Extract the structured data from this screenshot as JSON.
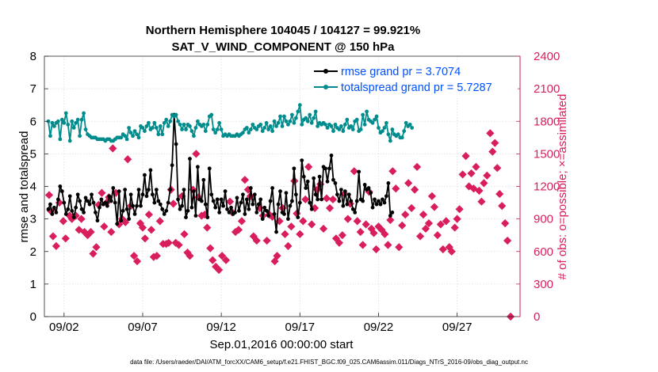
{
  "chart_data": {
    "type": "line",
    "title_line1": "Northern Hemisphere 104045 / 104127 = 99.921%",
    "title_line2": "SAT_V_WIND_COMPONENT @ 150 hPa",
    "xlabel": "Sep.01,2016 00:00:00 start",
    "ylabel_left": "rmse and totalspread",
    "ylabel_right": "# of obs: o=possible; ×=assimilated",
    "footnote": "data file: /Users/raeder/DAI/ATM_forcXX/CAM6_setup/f.e21.FHIST_BGC.f09_025.CAM6assim.011/Diags_NTrS_2016-09/obs_diag_output.nc",
    "xlim": [
      0.75,
      31.0
    ],
    "ylim_left": [
      0,
      8
    ],
    "ylim_right": [
      0,
      2400
    ],
    "x_ticks": [
      {
        "x": 2,
        "label": "09/02"
      },
      {
        "x": 7,
        "label": "09/07"
      },
      {
        "x": 12,
        "label": "09/12"
      },
      {
        "x": 17,
        "label": "09/17"
      },
      {
        "x": 22,
        "label": "09/22"
      },
      {
        "x": 27,
        "label": "09/27"
      }
    ],
    "y_ticks_left": [
      "0",
      "1",
      "2",
      "3",
      "4",
      "5",
      "6",
      "7",
      "8"
    ],
    "y_ticks_right": [
      "0",
      "300",
      "600",
      "900",
      "1200",
      "1500",
      "1800",
      "2100",
      "2400"
    ],
    "x_start": 1.0,
    "x_step": 0.125,
    "series": [
      {
        "name": "rmse grand pr = 3.7074",
        "color": "#000000",
        "values": [
          3.3,
          3.45,
          3.15,
          3.35,
          3.2,
          3.6,
          4.0,
          3.85,
          3.5,
          3.15,
          3.3,
          3.7,
          3.25,
          3.05,
          3.35,
          3.75,
          3.55,
          3.3,
          3.2,
          3.65,
          3.55,
          3.45,
          3.75,
          3.5,
          3.2,
          2.95,
          3.35,
          3.6,
          3.45,
          3.5,
          3.4,
          3.7,
          3.55,
          3.95,
          3.5,
          2.85,
          3.85,
          2.95,
          3.25,
          3.9,
          3.3,
          3.0,
          3.75,
          3.4,
          3.15,
          3.4,
          3.9,
          3.4,
          3.75,
          4.35,
          3.7,
          3.9,
          4.5,
          3.75,
          3.5,
          3.9,
          3.55,
          3.45,
          3.3,
          3.15,
          3.25,
          3.5,
          3.9,
          4.65,
          6.2,
          5.3,
          3.6,
          3.3,
          3.4,
          3.9,
          3.05,
          3.25,
          4.85,
          3.35,
          3.85,
          3.1,
          4.6,
          3.6,
          3.55,
          4.2,
          3.45,
          3.05,
          4.55,
          3.75,
          3.55,
          3.35,
          3.6,
          3.2,
          3.6,
          3.4,
          3.85,
          3.3,
          3.2,
          3.35,
          3.15,
          3.2,
          3.65,
          3.25,
          3.5,
          3.75,
          3.15,
          3.6,
          3.3,
          3.95,
          3.45,
          3.75,
          3.2,
          3.45,
          3.6,
          3.0,
          3.35,
          3.25,
          3.1,
          3.55,
          3.95,
          3.15,
          2.6,
          3.45,
          3.85,
          3.2,
          3.15,
          3.8,
          3.0,
          3.4,
          3.55,
          4.55,
          3.75,
          3.05,
          3.5,
          4.8,
          4.3,
          3.95,
          4.15,
          3.5,
          3.3,
          4.25,
          3.75,
          3.6,
          4.3,
          3.6,
          4.6,
          4.55,
          4.15,
          4.55,
          4.95,
          4.2,
          4.1,
          3.75,
          3.55,
          3.9,
          3.4,
          3.85,
          3.45,
          3.75,
          3.55,
          3.3,
          3.2,
          3.55,
          4.45,
          3.6,
          3.55,
          4.05,
          3.9,
          3.95,
          3.8,
          3.35,
          3.6,
          3.45,
          3.55,
          3.45,
          3.6,
          3.5,
          3.7,
          4.1,
          3.1,
          3.2
        ]
      },
      {
        "name": "totalspread grand pr = 5.7287",
        "color": "#008c8c",
        "values": [
          6.0,
          5.55,
          5.95,
          5.85,
          5.95,
          6.0,
          5.45,
          6.05,
          5.95,
          6.25,
          5.9,
          5.4,
          6.0,
          5.8,
          5.95,
          6.05,
          5.55,
          6.05,
          6.25,
          5.75,
          5.6,
          5.55,
          5.5,
          5.5,
          5.5,
          5.45,
          5.45,
          5.45,
          5.45,
          5.4,
          5.45,
          5.45,
          5.4,
          5.4,
          5.45,
          5.5,
          5.5,
          5.5,
          5.6,
          5.55,
          5.45,
          5.8,
          5.65,
          5.55,
          5.7,
          5.6,
          5.5,
          5.85,
          5.8,
          5.7,
          5.85,
          5.95,
          5.75,
          5.8,
          5.95,
          5.8,
          5.6,
          5.85,
          5.6,
          5.95,
          6.05,
          5.85,
          6.0,
          6.2,
          6.15,
          6.2,
          6.0,
          5.9,
          5.75,
          5.9,
          5.75,
          5.9,
          5.85,
          5.7,
          5.55,
          5.8,
          6.0,
          5.9,
          5.85,
          5.9,
          5.7,
          5.9,
          6.15,
          6.2,
          5.75,
          5.65,
          5.75,
          5.95,
          5.75,
          5.55,
          5.6,
          5.55,
          5.6,
          5.55,
          5.55,
          5.55,
          5.6,
          5.55,
          5.6,
          5.65,
          5.75,
          5.8,
          5.65,
          5.75,
          5.9,
          5.8,
          5.75,
          5.85,
          5.9,
          5.7,
          5.8,
          5.95,
          5.75,
          5.85,
          5.7,
          6.0,
          5.85,
          5.95,
          6.15,
          5.85,
          6.15,
          6.0,
          5.9,
          6.0,
          6.2,
          5.95,
          6.1,
          6.3,
          6.5,
          5.9,
          6.05,
          6.1,
          6.0,
          6.2,
          5.95,
          6.1,
          6.3,
          5.85,
          5.95,
          5.9,
          5.95,
          5.9,
          5.8,
          5.9,
          5.85,
          5.7,
          5.9,
          5.8,
          5.75,
          5.85,
          5.7,
          5.9,
          6.05,
          5.8,
          5.85,
          5.75,
          6.0,
          6.05,
          5.7,
          5.75,
          6.2,
          5.9,
          6.3,
          6.05,
          6.0,
          5.95,
          6.05,
          6.15,
          5.8,
          5.65,
          5.7,
          5.8,
          5.95,
          5.6,
          5.4,
          5.75,
          5.6,
          5.55,
          5.6,
          5.5,
          5.5,
          5.7,
          5.95,
          5.85,
          5.9,
          5.8
        ]
      },
      {
        "name": "# of obs assimilated",
        "color": "#d81e5b",
        "axis": "right",
        "points": [
          [
            1.05,
            1120
          ],
          [
            1.15,
            975
          ],
          [
            1.3,
            740
          ],
          [
            1.5,
            650
          ],
          [
            1.7,
            1050
          ],
          [
            1.95,
            880
          ],
          [
            2.1,
            720
          ],
          [
            2.35,
            930
          ],
          [
            2.5,
            900
          ],
          [
            2.75,
            930
          ],
          [
            2.95,
            800
          ],
          [
            3.1,
            900
          ],
          [
            3.3,
            780
          ],
          [
            3.5,
            750
          ],
          [
            3.7,
            780
          ],
          [
            3.85,
            580
          ],
          [
            4.05,
            640
          ],
          [
            4.2,
            1030
          ],
          [
            4.4,
            1140
          ],
          [
            4.55,
            830
          ],
          [
            4.7,
            1050
          ],
          [
            4.85,
            1100
          ],
          [
            5.0,
            780
          ],
          [
            5.1,
            1550
          ],
          [
            5.3,
            1140
          ],
          [
            5.5,
            850
          ],
          [
            5.7,
            900
          ],
          [
            5.9,
            870
          ],
          [
            6.05,
            1450
          ],
          [
            6.25,
            1020
          ],
          [
            6.45,
            560
          ],
          [
            6.65,
            510
          ],
          [
            6.85,
            860
          ],
          [
            7.0,
            820
          ],
          [
            7.15,
            720
          ],
          [
            7.4,
            940
          ],
          [
            7.55,
            800
          ],
          [
            7.7,
            550
          ],
          [
            7.9,
            560
          ],
          [
            8.1,
            880
          ],
          [
            8.3,
            670
          ],
          [
            8.5,
            670
          ],
          [
            8.65,
            680
          ],
          [
            8.8,
            1170
          ],
          [
            8.95,
            1040
          ],
          [
            9.1,
            680
          ],
          [
            9.3,
            660
          ],
          [
            9.5,
            1110
          ],
          [
            9.65,
            760
          ],
          [
            9.85,
            590
          ],
          [
            10.0,
            560
          ],
          [
            10.2,
            1170
          ],
          [
            10.4,
            1500
          ],
          [
            10.55,
            1100
          ],
          [
            10.75,
            930
          ],
          [
            10.95,
            940
          ],
          [
            11.1,
            820
          ],
          [
            11.3,
            630
          ],
          [
            11.45,
            520
          ],
          [
            11.65,
            460
          ],
          [
            11.85,
            430
          ],
          [
            12.05,
            560
          ],
          [
            12.3,
            520
          ],
          [
            12.55,
            1060
          ],
          [
            12.7,
            960
          ],
          [
            12.9,
            780
          ],
          [
            13.1,
            800
          ],
          [
            13.3,
            880
          ],
          [
            13.5,
            1260
          ],
          [
            13.7,
            1170
          ],
          [
            13.85,
            1110
          ],
          [
            14.05,
            740
          ],
          [
            14.25,
            700
          ],
          [
            14.45,
            1000
          ],
          [
            14.65,
            930
          ],
          [
            14.9,
            700
          ],
          [
            15.05,
            940
          ],
          [
            15.25,
            920
          ],
          [
            15.4,
            510
          ],
          [
            15.55,
            560
          ],
          [
            15.7,
            880
          ],
          [
            15.9,
            1000
          ],
          [
            16.05,
            760
          ],
          [
            16.25,
            650
          ],
          [
            16.45,
            830
          ],
          [
            16.65,
            1250
          ],
          [
            16.8,
            950
          ],
          [
            17.0,
            760
          ],
          [
            17.2,
            880
          ],
          [
            17.35,
            1080
          ],
          [
            17.55,
            1380
          ],
          [
            17.75,
            850
          ],
          [
            17.95,
            1000
          ],
          [
            18.1,
            1170
          ],
          [
            18.3,
            1220
          ],
          [
            18.5,
            810
          ],
          [
            18.7,
            1090
          ],
          [
            18.9,
            1000
          ],
          [
            19.1,
            1080
          ],
          [
            19.3,
            720
          ],
          [
            19.5,
            680
          ],
          [
            19.7,
            750
          ],
          [
            19.85,
            1130
          ],
          [
            20.05,
            900
          ],
          [
            20.2,
            1040
          ],
          [
            20.45,
            1340
          ],
          [
            20.65,
            880
          ],
          [
            20.85,
            780
          ],
          [
            21.0,
            660
          ],
          [
            21.2,
            850
          ],
          [
            21.4,
            1150
          ],
          [
            21.55,
            810
          ],
          [
            21.7,
            770
          ],
          [
            21.85,
            620
          ],
          [
            22.0,
            830
          ],
          [
            22.2,
            800
          ],
          [
            22.4,
            760
          ],
          [
            22.6,
            660
          ],
          [
            22.75,
            890
          ],
          [
            22.9,
            1340
          ],
          [
            23.1,
            1180
          ],
          [
            23.3,
            640
          ],
          [
            23.5,
            840
          ],
          [
            23.7,
            940
          ],
          [
            23.9,
            1230
          ],
          [
            24.1,
            1000
          ],
          [
            24.3,
            1170
          ],
          [
            24.45,
            1380
          ],
          [
            24.65,
            740
          ],
          [
            24.85,
            940
          ],
          [
            25.0,
            810
          ],
          [
            25.2,
            860
          ],
          [
            25.4,
            1110
          ],
          [
            25.55,
            1010
          ],
          [
            25.75,
            750
          ],
          [
            25.95,
            850
          ],
          [
            26.1,
            620
          ],
          [
            26.3,
            880
          ],
          [
            26.5,
            640
          ],
          [
            26.65,
            600
          ],
          [
            26.85,
            820
          ],
          [
            27.0,
            900
          ],
          [
            27.15,
            990
          ],
          [
            27.35,
            1310
          ],
          [
            27.55,
            1480
          ],
          [
            27.75,
            1200
          ],
          [
            27.9,
            1320
          ],
          [
            28.05,
            1180
          ],
          [
            28.2,
            1380
          ],
          [
            28.4,
            1160
          ],
          [
            28.55,
            1060
          ],
          [
            28.7,
            1230
          ],
          [
            28.9,
            1300
          ],
          [
            29.1,
            1690
          ],
          [
            29.25,
            1520
          ],
          [
            29.4,
            1600
          ],
          [
            29.55,
            1370
          ],
          [
            29.7,
            1130
          ],
          [
            29.85,
            1020
          ],
          [
            30.05,
            860
          ],
          [
            30.2,
            700
          ],
          [
            30.4,
            0
          ]
        ]
      }
    ],
    "grid": true,
    "legend_placement": "top-right"
  }
}
